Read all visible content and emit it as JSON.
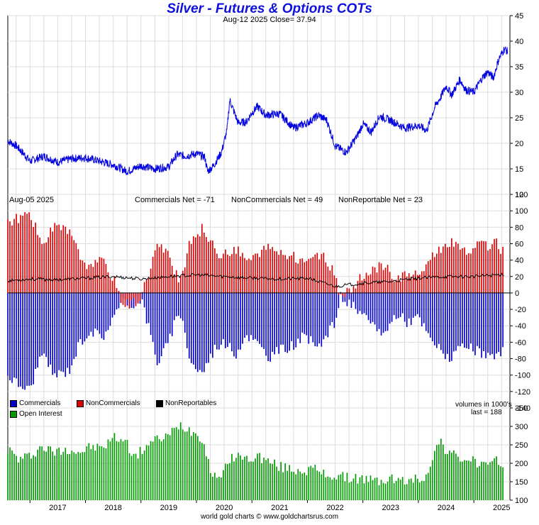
{
  "colors": {
    "price_line": "#0000e0",
    "commercials": "#0000cc",
    "noncommercials": "#dd0000",
    "nonreportables": "#000000",
    "open_interest": "#009900",
    "grid": "#dcdcdc",
    "title": "#1010dd"
  },
  "header": {
    "title": "Silver - Futures & Options COTs",
    "subtitle": "Aug-12  2025   Close= 37.94"
  },
  "cot_header": {
    "date": "Aug-05  2025",
    "commercials_net": "Commercials Net = -71",
    "noncommercials_net": "NonCommercials Net = 49",
    "nonreportable_net": "NonReportable Net = 23"
  },
  "legend": {
    "commercials": "Commercials",
    "noncommercials": "NonCommercials",
    "nonreportables": "NonReportables",
    "open_interest": "Open Interest",
    "volumes_note": "volumes in 1000's",
    "last_note": "last = 188"
  },
  "footer": "world gold charts © www.goldchartsrus.com",
  "chart_data": [
    {
      "type": "line",
      "panel": "price",
      "title": "Silver - Futures & Options COTs",
      "subtitle": "Aug-12  2025   Close= 37.94",
      "ylim": [
        10,
        45
      ],
      "yticks": [
        "45",
        "40",
        "35",
        "30",
        "25",
        "20",
        "15",
        "10"
      ],
      "series": [
        {
          "values_by_year": {
            "x": [
              2016.6,
              2016.75,
              2016.9,
              2017.0,
              2017.25,
              2017.5,
              2017.75,
              2018.0,
              2018.25,
              2018.5,
              2018.75,
              2019.0,
              2019.25,
              2019.5,
              2019.65,
              2019.8,
              2020.0,
              2020.15,
              2020.2,
              2020.3,
              2020.45,
              2020.55,
              2020.6,
              2020.75,
              2020.9,
              2021.0,
              2021.1,
              2021.25,
              2021.5,
              2021.75,
              2022.0,
              2022.2,
              2022.35,
              2022.5,
              2022.7,
              2022.9,
              2023.0,
              2023.15,
              2023.3,
              2023.5,
              2023.75,
              2024.0,
              2024.15,
              2024.3,
              2024.4,
              2024.5,
              2024.6,
              2024.75,
              2024.85,
              2025.0,
              2025.15,
              2025.25,
              2025.35,
              2025.45,
              2025.55,
              2025.61
            ],
            "y": [
              20.5,
              19.5,
              17.8,
              16.5,
              17.5,
              16.3,
              17.0,
              17.2,
              16.5,
              15.8,
              14.5,
              15.6,
              15.0,
              15.4,
              17.8,
              17.5,
              18.0,
              17.3,
              14.5,
              15.5,
              18.2,
              22.5,
              28.5,
              24.0,
              24.2,
              26.0,
              27.2,
              25.5,
              25.8,
              23.0,
              24.0,
              25.5,
              24.5,
              19.5,
              18.2,
              21.5,
              23.8,
              22.2,
              25.3,
              24.5,
              23.0,
              23.5,
              22.5,
              27.2,
              29.0,
              31.2,
              29.5,
              32.5,
              30.5,
              30.0,
              32.8,
              34.0,
              32.8,
              36.5,
              38.5,
              37.94
            ]
          }
        }
      ]
    },
    {
      "type": "bar",
      "panel": "cot_net_positions",
      "title": "",
      "ylim": [
        -140,
        120
      ],
      "yticks": [
        "120",
        "100",
        "80",
        "60",
        "40",
        "20",
        "0",
        "-20",
        "-40",
        "-60",
        "-80",
        "-100",
        "-120",
        "-140"
      ],
      "xlabel": "",
      "ylabel": "",
      "series": [
        {
          "name": "Commercials",
          "x": [
            2016.6,
            2016.8,
            2017.0,
            2017.2,
            2017.45,
            2017.7,
            2017.9,
            2018.1,
            2018.3,
            2018.5,
            2018.7,
            2018.9,
            2019.0,
            2019.3,
            2019.5,
            2019.7,
            2019.9,
            2020.1,
            2020.35,
            2020.5,
            2020.7,
            2020.9,
            2021.1,
            2021.3,
            2021.5,
            2021.7,
            2021.9,
            2022.1,
            2022.3,
            2022.5,
            2022.6,
            2022.8,
            2023.0,
            2023.2,
            2023.4,
            2023.6,
            2023.8,
            2024.0,
            2024.2,
            2024.4,
            2024.6,
            2024.8,
            2025.0,
            2025.2,
            2025.4,
            2025.55
          ],
          "values": [
            -100,
            -112,
            -118,
            -75,
            -100,
            -95,
            -60,
            -45,
            -55,
            -30,
            -10,
            -15,
            -5,
            -85,
            -60,
            -20,
            -85,
            -98,
            -65,
            -60,
            -75,
            -50,
            -62,
            -78,
            -70,
            -65,
            -55,
            -60,
            -58,
            -35,
            -5,
            -15,
            -30,
            -40,
            -50,
            -25,
            -35,
            -30,
            -55,
            -70,
            -80,
            -65,
            -70,
            -75,
            -80,
            -71
          ]
        },
        {
          "name": "NonCommercials",
          "x": [
            2016.6,
            2016.8,
            2017.0,
            2017.2,
            2017.45,
            2017.7,
            2017.9,
            2018.1,
            2018.3,
            2018.5,
            2018.7,
            2018.9,
            2019.0,
            2019.3,
            2019.5,
            2019.7,
            2019.9,
            2020.1,
            2020.35,
            2020.5,
            2020.7,
            2020.9,
            2021.1,
            2021.3,
            2021.5,
            2021.7,
            2021.9,
            2022.1,
            2022.3,
            2022.5,
            2022.6,
            2022.8,
            2023.0,
            2023.2,
            2023.4,
            2023.6,
            2023.8,
            2024.0,
            2024.2,
            2024.4,
            2024.6,
            2024.8,
            2025.0,
            2025.2,
            2025.4,
            2025.55
          ],
          "values": [
            88,
            90,
            100,
            58,
            80,
            75,
            45,
            30,
            40,
            18,
            -15,
            -10,
            -5,
            60,
            45,
            10,
            65,
            78,
            52,
            45,
            55,
            40,
            45,
            55,
            50,
            45,
            40,
            45,
            42,
            25,
            -8,
            5,
            20,
            28,
            35,
            15,
            25,
            20,
            42,
            55,
            60,
            50,
            55,
            58,
            60,
            49
          ]
        },
        {
          "name": "NonReportables",
          "x": [
            2016.6,
            2017.0,
            2017.5,
            2018.0,
            2018.5,
            2019.0,
            2019.5,
            2020.0,
            2020.5,
            2021.0,
            2021.5,
            2022.0,
            2022.5,
            2023.0,
            2023.5,
            2024.0,
            2024.5,
            2025.0,
            2025.55
          ],
          "values": [
            15,
            17,
            16,
            18,
            20,
            17,
            20,
            22,
            20,
            18,
            17,
            18,
            8,
            12,
            14,
            18,
            20,
            20,
            23
          ]
        }
      ]
    },
    {
      "type": "bar",
      "panel": "open_interest",
      "title": "",
      "ylim": [
        100,
        350
      ],
      "yticks": [
        "350",
        "300",
        "250",
        "200",
        "150",
        "100"
      ],
      "xlabel": "",
      "ylabel": "",
      "categories": [
        "2017",
        "2018",
        "2019",
        "2020",
        "2021",
        "2022",
        "2023",
        "2024",
        "2025"
      ],
      "series": [
        {
          "name": "Open Interest",
          "x": [
            2016.6,
            2016.8,
            2017.0,
            2017.2,
            2017.45,
            2017.7,
            2017.9,
            2018.1,
            2018.3,
            2018.5,
            2018.7,
            2018.9,
            2019.1,
            2019.3,
            2019.5,
            2019.7,
            2019.9,
            2020.1,
            2020.3,
            2020.5,
            2020.7,
            2020.9,
            2021.1,
            2021.3,
            2021.5,
            2021.7,
            2021.9,
            2022.1,
            2022.3,
            2022.5,
            2022.7,
            2022.9,
            2023.1,
            2023.3,
            2023.5,
            2023.7,
            2023.9,
            2024.1,
            2024.3,
            2024.4,
            2024.5,
            2024.7,
            2024.9,
            2025.1,
            2025.3,
            2025.45,
            2025.55
          ],
          "values": [
            240,
            210,
            220,
            245,
            230,
            240,
            230,
            245,
            240,
            270,
            265,
            215,
            250,
            265,
            275,
            305,
            290,
            270,
            160,
            180,
            225,
            210,
            220,
            205,
            190,
            185,
            180,
            185,
            170,
            165,
            160,
            160,
            155,
            150,
            160,
            150,
            155,
            160,
            230,
            265,
            235,
            215,
            210,
            200,
            190,
            210,
            188
          ]
        }
      ],
      "last": 188
    }
  ],
  "x_axis": {
    "labels": [
      "2017",
      "2018",
      "2019",
      "2020",
      "2021",
      "2022",
      "2023",
      "2024",
      "2025"
    ],
    "xlim": [
      2016.6,
      2025.65
    ]
  }
}
